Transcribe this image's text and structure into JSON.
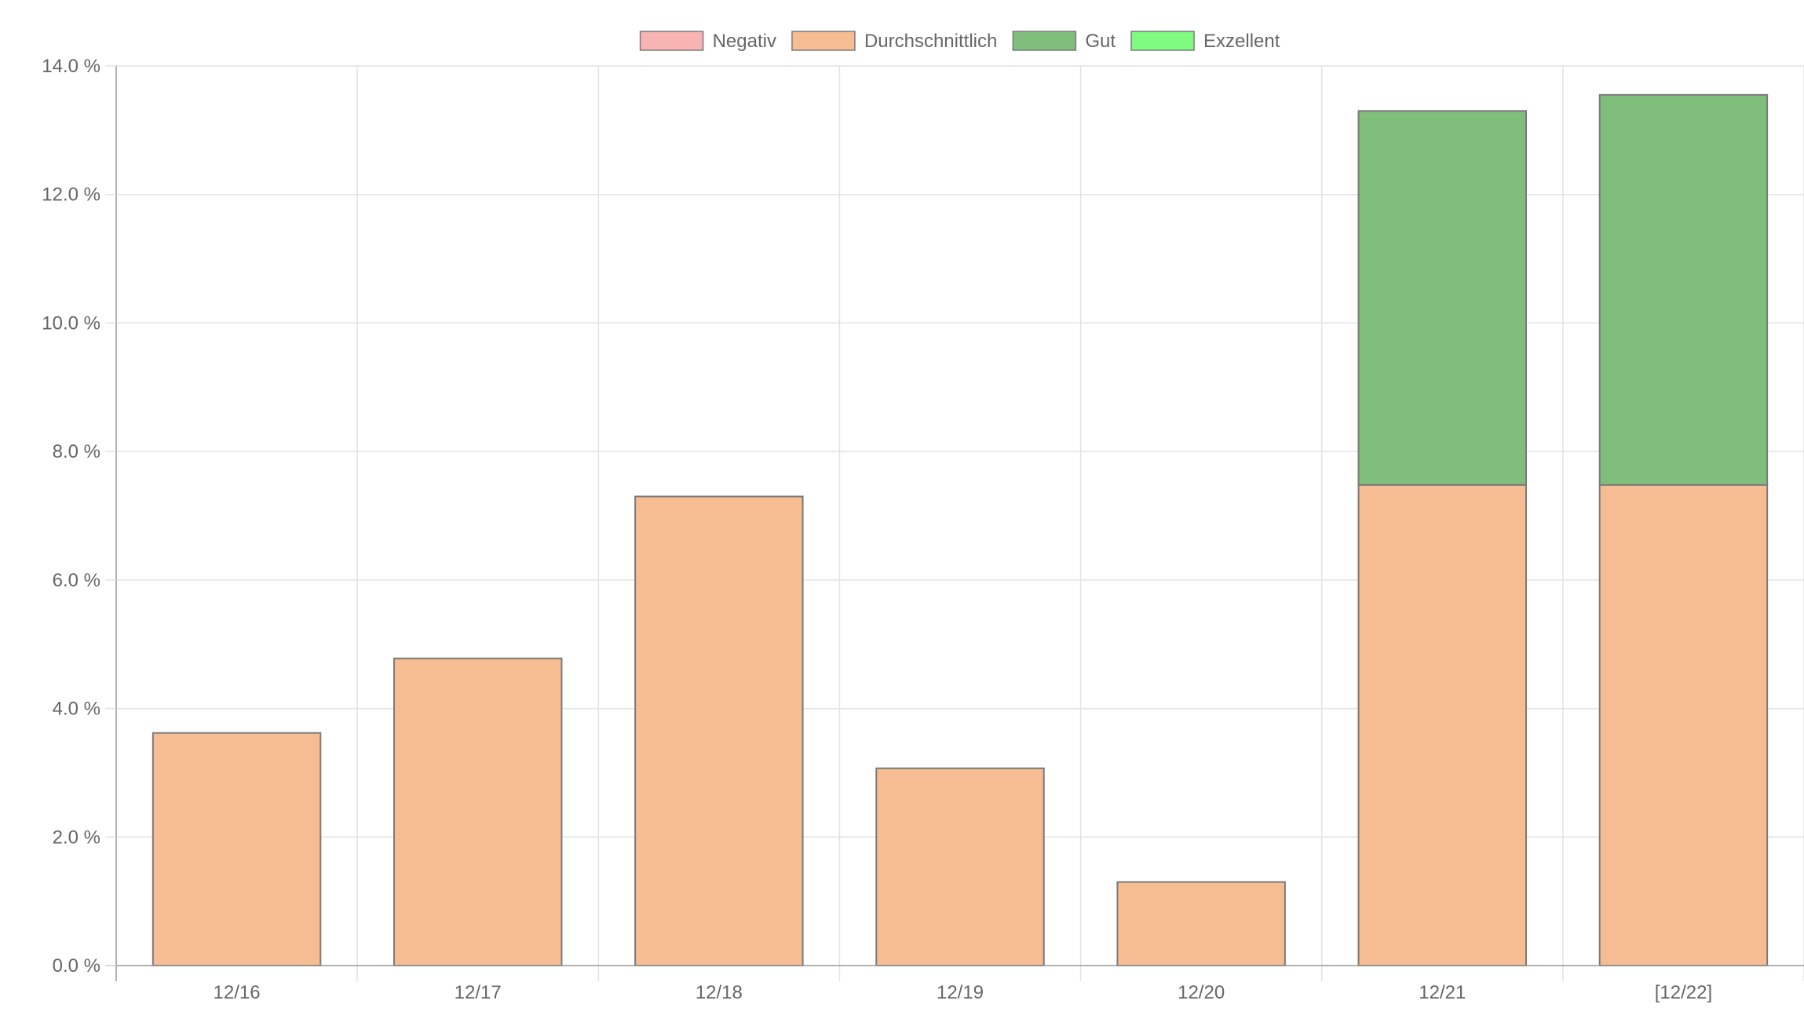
{
  "chart_data": {
    "type": "bar",
    "stacked": true,
    "categories": [
      "12/16",
      "12/17",
      "12/18",
      "12/19",
      "12/20",
      "12/21",
      "[12/22]"
    ],
    "series": [
      {
        "name": "Negativ",
        "color": "#f8b3b3",
        "values": [
          0,
          0,
          0,
          0,
          0,
          0,
          0
        ]
      },
      {
        "name": "Durchschnittlich",
        "color": "#f5bd91",
        "values": [
          3.62,
          4.78,
          7.3,
          3.07,
          1.3,
          7.48,
          7.48
        ]
      },
      {
        "name": "Gut",
        "color": "#7fbf7b",
        "values": [
          0,
          0,
          0,
          0,
          0,
          5.82,
          6.07
        ]
      },
      {
        "name": "Exzellent",
        "color": "#7ffc7f",
        "values": [
          0,
          0,
          0,
          0,
          0,
          0,
          0
        ]
      }
    ],
    "ylim": [
      0,
      14
    ],
    "yticks": [
      0,
      2,
      4,
      6,
      8,
      10,
      12,
      14
    ],
    "ytick_labels": [
      "0.0 %",
      "2.0 %",
      "4.0 %",
      "6.0 %",
      "8.0 %",
      "10.0 %",
      "12.0 %",
      "14.0 %"
    ],
    "title": "",
    "xlabel": "",
    "ylabel": "",
    "grid": true,
    "legend_position": "top-center"
  }
}
